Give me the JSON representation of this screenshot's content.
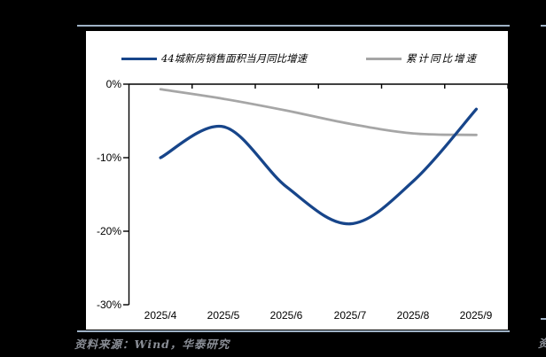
{
  "page": {
    "background": "#000000",
    "rule_color": "#9FB2C6"
  },
  "chart_data": {
    "type": "line",
    "categories": [
      "2025/4",
      "2025/5",
      "2025/6",
      "2025/7",
      "2025/8",
      "2025/9"
    ],
    "series": [
      {
        "name": "44城新房销售面积当月同比增速",
        "color": "#17458A",
        "values": [
          -10.0,
          -5.8,
          -14.0,
          -19.0,
          -13.2,
          -3.4
        ]
      },
      {
        "name": "累计同比增速",
        "color": "#A6A6A6",
        "values": [
          -0.7,
          -2.0,
          -3.6,
          -5.4,
          -6.7,
          -6.9
        ]
      }
    ],
    "title": "",
    "xlabel": "",
    "ylabel": "",
    "ytick_labels": [
      "0%",
      "-10%",
      "-20%",
      "-30%"
    ],
    "yticks_values": [
      0,
      -10,
      -20,
      -30
    ],
    "ylim": [
      -30,
      0
    ],
    "grid": false,
    "legend_position": "top"
  },
  "legend": {
    "monthly_label": "44城新房销售面积当月同比增速",
    "cumulative_label": "累计同比增速"
  },
  "source": {
    "text": "资料来源：Wind，华泰研究"
  },
  "adjacent_chart_sliver": {
    "source_fragment": "资"
  }
}
